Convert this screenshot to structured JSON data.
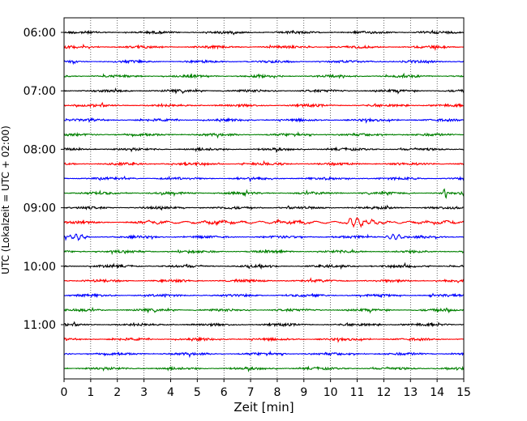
{
  "chart_data": {
    "type": "line",
    "title": "",
    "xlabel": "Zeit  [min]",
    "ylabel": "UTC (Lokalzeit = UTC + 02:00)",
    "xlim": [
      0,
      15
    ],
    "x_ticks": [
      "0",
      "1",
      "2",
      "3",
      "4",
      "5",
      "6",
      "7",
      "8",
      "9",
      "10",
      "11",
      "12",
      "13",
      "14",
      "15"
    ],
    "y_ticks": [
      "06:00",
      "07:00",
      "08:00",
      "09:00",
      "10:00",
      "11:00"
    ],
    "grid": "vertical dotted lines at each minute",
    "legend": "none",
    "trace_interval_min": 15,
    "trace_count": 24,
    "start_time": "06:00",
    "color_cycle": [
      "#000000",
      "#ff0000",
      "#0000ff",
      "#008000"
    ],
    "events": [
      {
        "trace_start": "08:45",
        "minute": 14.3,
        "kind": "spike"
      },
      {
        "trace_start": "09:15",
        "minute": 10.8,
        "kind": "wave packet"
      },
      {
        "trace_start": "09:30",
        "minute": 0.5,
        "kind": "burst"
      },
      {
        "trace_start": "09:30",
        "minute": 12.4,
        "kind": "burst"
      }
    ]
  }
}
